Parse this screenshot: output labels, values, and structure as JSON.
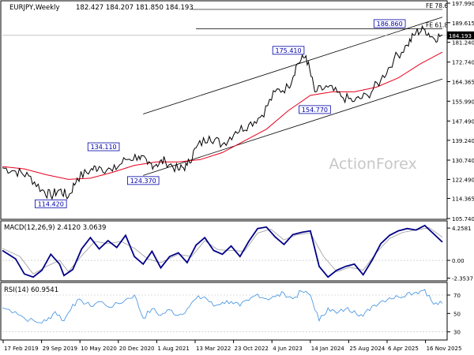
{
  "chart_data": [
    {
      "id": "price",
      "type": "line",
      "title": "EURJPY,Weekly",
      "ohlc_text": "182.427 184.207 181.850 184.193",
      "watermark": "ActionForex",
      "y_ticks": [
        "197.990",
        "189.615",
        "181.240",
        "172.740",
        "164.365",
        "155.990",
        "147.490",
        "139.240",
        "130.740",
        "122.490",
        "114.365",
        "105.740"
      ],
      "ylim": [
        105.74,
        197.99
      ],
      "last_value": "184.193",
      "grid": false,
      "annotations": [
        {
          "label": "114.420",
          "x": 0.11,
          "y": 114.42
        },
        {
          "label": "134.110",
          "x": 0.23,
          "y": 134.11
        },
        {
          "label": "124.370",
          "x": 0.32,
          "y": 124.37
        },
        {
          "label": "175.410",
          "x": 0.65,
          "y": 175.41
        },
        {
          "label": "154.770",
          "x": 0.71,
          "y": 154.77
        },
        {
          "label": "186.860",
          "x": 0.88,
          "y": 186.86
        }
      ],
      "fib_labels": [
        {
          "label": "FE 78.6",
          "y": 195.3
        },
        {
          "label": "FE 61.8",
          "y": 187.0
        }
      ],
      "series": [
        {
          "name": "",
          "kind": "price",
          "values": [
            [
              0,
              127.5
            ],
            [
              0.03,
              126
            ],
            [
              0.06,
              124
            ],
            [
              0.09,
              118
            ],
            [
              0.11,
              115.5
            ],
            [
              0.13,
              118
            ],
            [
              0.15,
              115
            ],
            [
              0.17,
              123
            ],
            [
              0.2,
              126.5
            ],
            [
              0.22,
              128
            ],
            [
              0.25,
              126
            ],
            [
              0.28,
              131
            ],
            [
              0.31,
              132.5
            ],
            [
              0.33,
              129
            ],
            [
              0.35,
              129
            ],
            [
              0.37,
              130.5
            ],
            [
              0.4,
              126.5
            ],
            [
              0.42,
              128.5
            ],
            [
              0.44,
              136
            ],
            [
              0.47,
              141
            ],
            [
              0.5,
              137.5
            ],
            [
              0.53,
              143
            ],
            [
              0.56,
              146
            ],
            [
              0.59,
              150
            ],
            [
              0.62,
              160
            ],
            [
              0.65,
              162
            ],
            [
              0.67,
              172
            ],
            [
              0.69,
              175.5
            ],
            [
              0.71,
              160
            ],
            [
              0.74,
              162
            ],
            [
              0.77,
              158
            ],
            [
              0.8,
              156
            ],
            [
              0.83,
              158.5
            ],
            [
              0.86,
              165
            ],
            [
              0.89,
              174
            ],
            [
              0.92,
              180
            ],
            [
              0.94,
              185.5
            ],
            [
              0.96,
              186.8
            ],
            [
              0.98,
              183
            ],
            [
              1,
              184.2
            ]
          ]
        },
        {
          "name": "",
          "kind": "ma",
          "values": [
            [
              0,
              128
            ],
            [
              0.05,
              127
            ],
            [
              0.1,
              124.5
            ],
            [
              0.15,
              122.5
            ],
            [
              0.2,
              123
            ],
            [
              0.25,
              125.5
            ],
            [
              0.3,
              128.5
            ],
            [
              0.35,
              130
            ],
            [
              0.4,
              130
            ],
            [
              0.45,
              131
            ],
            [
              0.5,
              134
            ],
            [
              0.55,
              139
            ],
            [
              0.6,
              144
            ],
            [
              0.65,
              152
            ],
            [
              0.7,
              158.5
            ],
            [
              0.75,
              160
            ],
            [
              0.8,
              160
            ],
            [
              0.85,
              162
            ],
            [
              0.9,
              166
            ],
            [
              0.95,
              172
            ],
            [
              1,
              177
            ]
          ]
        }
      ],
      "channel_lines": [
        {
          "from": [
            0.32,
            124.2
          ],
          "to": [
            1,
            165.5
          ]
        },
        {
          "from": [
            0.32,
            150.5
          ],
          "to": [
            1,
            192.0
          ]
        }
      ],
      "fib_lines": [
        {
          "from": [
            0.43,
            195.3
          ],
          "to": [
            1,
            195.3
          ]
        },
        {
          "from": [
            0.44,
            187.0
          ],
          "to": [
            1,
            187.0
          ]
        }
      ],
      "hline": {
        "y": 184.193
      }
    },
    {
      "id": "macd",
      "type": "line",
      "title": "MACD(12,26,9) 2.4120 3.0639",
      "y_ticks": [
        "4.2581",
        "0.00",
        "-2.3537"
      ],
      "ylim": [
        -2.6,
        5.0
      ],
      "zero_line": 0,
      "series": [
        {
          "name": "",
          "kind": "macd",
          "values": [
            [
              0,
              1.3
            ],
            [
              0.03,
              0.2
            ],
            [
              0.05,
              -1.8
            ],
            [
              0.07,
              -2.2
            ],
            [
              0.09,
              -1.3
            ],
            [
              0.11,
              0.8
            ],
            [
              0.13,
              -0.5
            ],
            [
              0.14,
              -2.0
            ],
            [
              0.16,
              -1.2
            ],
            [
              0.18,
              1.5
            ],
            [
              0.2,
              3.0
            ],
            [
              0.22,
              1.5
            ],
            [
              0.24,
              2.6
            ],
            [
              0.26,
              1.7
            ],
            [
              0.28,
              3.3
            ],
            [
              0.3,
              0.5
            ],
            [
              0.32,
              -0.5
            ],
            [
              0.34,
              1.2
            ],
            [
              0.36,
              -1.0
            ],
            [
              0.38,
              0.5
            ],
            [
              0.4,
              1.0
            ],
            [
              0.42,
              -0.3
            ],
            [
              0.44,
              2.0
            ],
            [
              0.46,
              3.0
            ],
            [
              0.48,
              1.3
            ],
            [
              0.5,
              0.8
            ],
            [
              0.52,
              1.9
            ],
            [
              0.54,
              0.5
            ],
            [
              0.56,
              2.5
            ],
            [
              0.58,
              4.2
            ],
            [
              0.6,
              4.4
            ],
            [
              0.62,
              3.1
            ],
            [
              0.64,
              2.1
            ],
            [
              0.66,
              3.4
            ],
            [
              0.68,
              3.7
            ],
            [
              0.7,
              3.9
            ],
            [
              0.72,
              -0.8
            ],
            [
              0.74,
              -2.2
            ],
            [
              0.76,
              -1.3
            ],
            [
              0.78,
              -0.8
            ],
            [
              0.8,
              -0.5
            ],
            [
              0.82,
              -1.9
            ],
            [
              0.84,
              0.0
            ],
            [
              0.86,
              2.2
            ],
            [
              0.88,
              3.3
            ],
            [
              0.9,
              3.9
            ],
            [
              0.92,
              4.2
            ],
            [
              0.94,
              4.0
            ],
            [
              0.96,
              4.6
            ],
            [
              0.98,
              3.5
            ],
            [
              1,
              2.41
            ]
          ]
        },
        {
          "name": "",
          "kind": "signal",
          "values": [
            [
              0,
              1.6
            ],
            [
              0.04,
              0.5
            ],
            [
              0.07,
              -1.8
            ],
            [
              0.1,
              -0.8
            ],
            [
              0.13,
              0.0
            ],
            [
              0.15,
              -1.5
            ],
            [
              0.18,
              0.6
            ],
            [
              0.21,
              2.5
            ],
            [
              0.24,
              2.2
            ],
            [
              0.27,
              2.5
            ],
            [
              0.3,
              1.6
            ],
            [
              0.33,
              0.2
            ],
            [
              0.36,
              -0.3
            ],
            [
              0.4,
              0.8
            ],
            [
              0.43,
              0.5
            ],
            [
              0.46,
              2.6
            ],
            [
              0.49,
              1.4
            ],
            [
              0.52,
              1.3
            ],
            [
              0.55,
              1.2
            ],
            [
              0.58,
              3.6
            ],
            [
              0.61,
              4.1
            ],
            [
              0.64,
              2.7
            ],
            [
              0.67,
              3.4
            ],
            [
              0.7,
              3.6
            ],
            [
              0.73,
              0.5
            ],
            [
              0.76,
              -1.5
            ],
            [
              0.79,
              -0.9
            ],
            [
              0.82,
              -1.3
            ],
            [
              0.85,
              1.0
            ],
            [
              0.88,
              2.9
            ],
            [
              0.91,
              3.7
            ],
            [
              0.94,
              4.0
            ],
            [
              0.97,
              4.3
            ],
            [
              1,
              3.06
            ]
          ]
        }
      ],
      "legend": "none"
    },
    {
      "id": "rsi",
      "type": "line",
      "title": "RSI(14) 60.9541",
      "y_ticks": [
        "70",
        "50",
        "30"
      ],
      "ylim": [
        22,
        82
      ],
      "ref_lines": [
        70,
        30
      ],
      "series": [
        {
          "name": "",
          "kind": "rsi",
          "values": [
            [
              0,
              56
            ],
            [
              0.03,
              52
            ],
            [
              0.05,
              45
            ],
            [
              0.08,
              40
            ],
            [
              0.1,
              42
            ],
            [
              0.12,
              52
            ],
            [
              0.14,
              42
            ],
            [
              0.16,
              60
            ],
            [
              0.18,
              64
            ],
            [
              0.2,
              58
            ],
            [
              0.22,
              63
            ],
            [
              0.25,
              57
            ],
            [
              0.28,
              65
            ],
            [
              0.3,
              70
            ],
            [
              0.32,
              45
            ],
            [
              0.34,
              55
            ],
            [
              0.36,
              48
            ],
            [
              0.38,
              54
            ],
            [
              0.4,
              48
            ],
            [
              0.42,
              55
            ],
            [
              0.44,
              66
            ],
            [
              0.46,
              68
            ],
            [
              0.48,
              58
            ],
            [
              0.5,
              62
            ],
            [
              0.52,
              63
            ],
            [
              0.54,
              58
            ],
            [
              0.56,
              64
            ],
            [
              0.58,
              71
            ],
            [
              0.6,
              66
            ],
            [
              0.62,
              68
            ],
            [
              0.64,
              72
            ],
            [
              0.66,
              66
            ],
            [
              0.68,
              74
            ],
            [
              0.7,
              70
            ],
            [
              0.72,
              42
            ],
            [
              0.74,
              56
            ],
            [
              0.76,
              50
            ],
            [
              0.78,
              55
            ],
            [
              0.8,
              53
            ],
            [
              0.82,
              47
            ],
            [
              0.84,
              58
            ],
            [
              0.86,
              63
            ],
            [
              0.88,
              67
            ],
            [
              0.9,
              68
            ],
            [
              0.92,
              72
            ],
            [
              0.94,
              73
            ],
            [
              0.96,
              76
            ],
            [
              0.98,
              60
            ],
            [
              1,
              61
            ]
          ]
        }
      ],
      "legend": "none"
    }
  ],
  "x_axis": {
    "tick_labels": [
      "17 Feb 2019",
      "29 Sep 2019",
      "10 May 2020",
      "20 Dec 2020",
      "1 Aug 2021",
      "13 Mar 2022",
      "23 Oct 2022",
      "4 Jun 2023",
      "14 Jan 2024",
      "25 Aug 2024",
      "6 Apr 2025",
      "16 Nov 2025"
    ]
  },
  "colors": {
    "price": "#000000",
    "ma": "#e8001c",
    "macd": "#000088",
    "signal": "#9a9a9a",
    "rsi": "#3d8fe0",
    "label_box": "#0000aa",
    "channel": "#000000",
    "watermark": "#c7c7c7",
    "last_bg": "#000000"
  }
}
